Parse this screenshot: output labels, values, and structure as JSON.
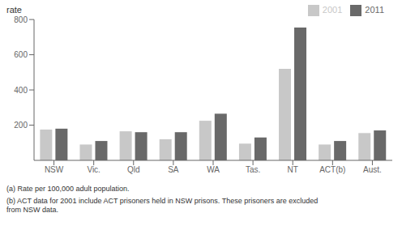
{
  "chart_data": {
    "type": "bar",
    "y_label": "rate",
    "categories": [
      "NSW",
      "Vic.",
      "Qld",
      "SA",
      "WA",
      "Tas.",
      "NT",
      "ACT(b)",
      "Aust."
    ],
    "series": [
      {
        "name": "2001",
        "color": "#c8c8c8",
        "values": [
          175,
          90,
          165,
          120,
          225,
          95,
          520,
          90,
          155
        ]
      },
      {
        "name": "2011",
        "color": "#696969",
        "values": [
          180,
          110,
          160,
          160,
          265,
          130,
          755,
          110,
          170
        ]
      }
    ],
    "ylim": [
      0,
      800
    ],
    "yticks": [
      200,
      400,
      600,
      800
    ],
    "grid": false,
    "legend": "upper right",
    "annotations": [
      "(a) Rate per 100,000 adult population.",
      "(b) ACT data for 2001 include ACT prisoners held in NSW prisons. These prisoners are excluded\nfrom NSW data."
    ]
  }
}
